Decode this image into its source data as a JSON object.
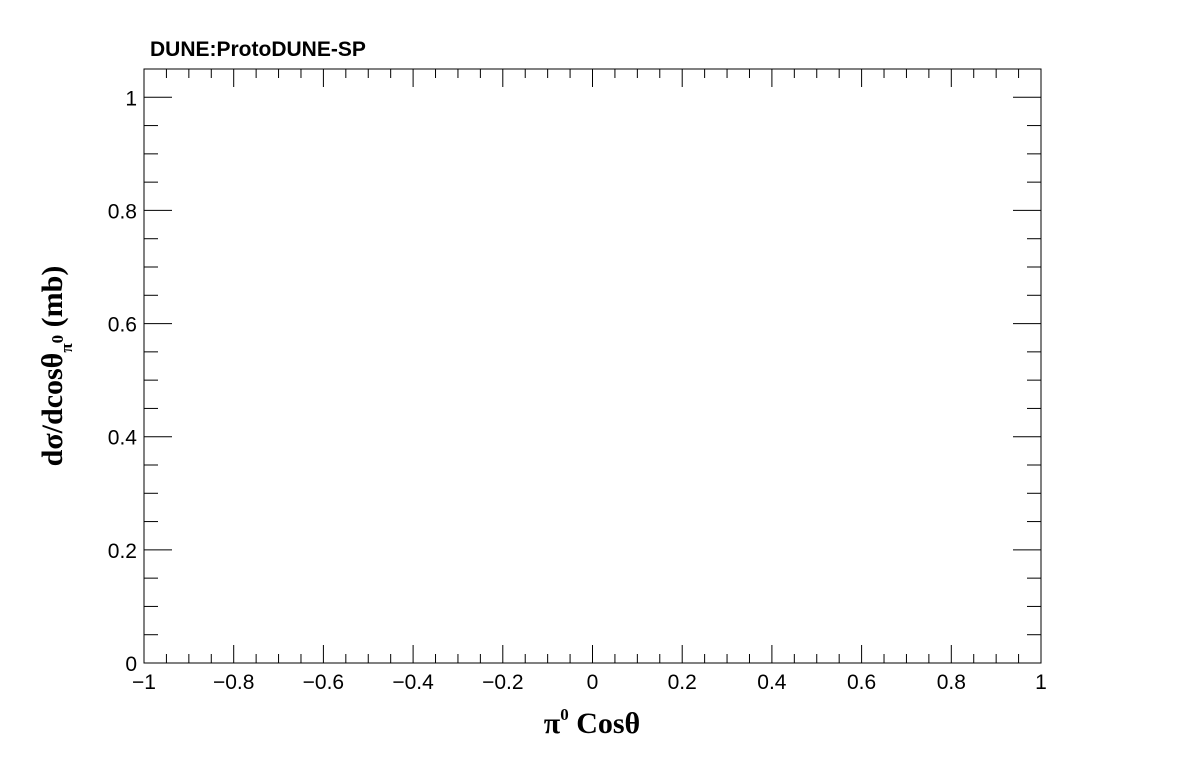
{
  "chart_data": {
    "type": "line",
    "title": "DUNE:ProtoDUNE-SP",
    "xlabel": "π⁰ Cosθ",
    "xlabel_parts": {
      "base": "π",
      "sup": "0",
      "rest": " Cosθ"
    },
    "ylabel": "dσ/dcosθπ⁰ (mb)",
    "ylabel_parts": {
      "base": "dσ/dcosθ",
      "sub": "π",
      "subsup": "0",
      "rest": " (mb)"
    },
    "xlim": [
      -1,
      1
    ],
    "ylim": [
      0,
      1.05
    ],
    "x_ticks": [
      {
        "value": -1,
        "label": "−1"
      },
      {
        "value": -0.8,
        "label": "−0.8"
      },
      {
        "value": -0.6,
        "label": "−0.6"
      },
      {
        "value": -0.4,
        "label": "−0.4"
      },
      {
        "value": -0.2,
        "label": "−0.2"
      },
      {
        "value": 0,
        "label": "0"
      },
      {
        "value": 0.2,
        "label": "0.2"
      },
      {
        "value": 0.4,
        "label": "0.4"
      },
      {
        "value": 0.6,
        "label": "0.6"
      },
      {
        "value": 0.8,
        "label": "0.8"
      },
      {
        "value": 1,
        "label": "1"
      }
    ],
    "y_ticks": [
      {
        "value": 0,
        "label": "0"
      },
      {
        "value": 0.2,
        "label": "0.2"
      },
      {
        "value": 0.4,
        "label": "0.4"
      },
      {
        "value": 0.6,
        "label": "0.6"
      },
      {
        "value": 0.8,
        "label": "0.8"
      },
      {
        "value": 1,
        "label": "1"
      }
    ],
    "x_minor_step": 0.05,
    "y_minor_step": 0.05,
    "grid": false,
    "series": []
  }
}
